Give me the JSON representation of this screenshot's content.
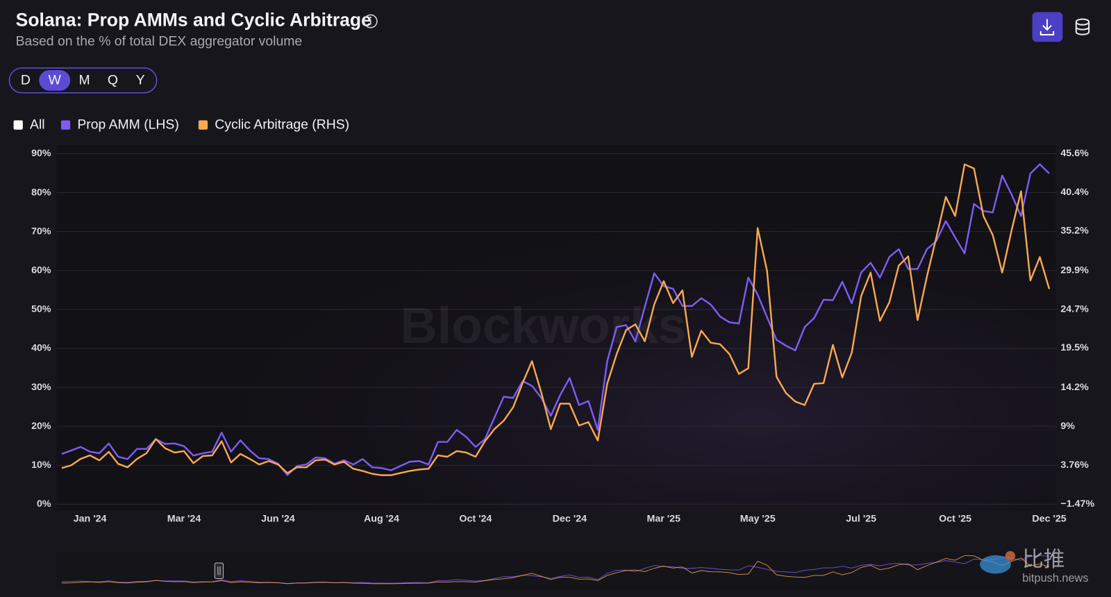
{
  "header": {
    "title": "Solana: Prop AMMs and Cyclic Arbitrage",
    "subtitle": "Based on the % of total DEX aggregator volume"
  },
  "controls": {
    "intervals": [
      "D",
      "W",
      "M",
      "Q",
      "Y"
    ],
    "active": "W"
  },
  "chart_data": {
    "type": "line",
    "legend_toggle": "All",
    "watermark": "Blockworks",
    "categories": [
      null,
      null,
      null,
      "Jan '24",
      null,
      null,
      null,
      null,
      null,
      null,
      null,
      null,
      null,
      "Mar '24",
      null,
      null,
      null,
      null,
      null,
      null,
      null,
      null,
      null,
      "Jun '24",
      null,
      null,
      null,
      null,
      null,
      null,
      null,
      null,
      null,
      null,
      "Aug '24",
      null,
      null,
      null,
      null,
      null,
      null,
      null,
      null,
      null,
      "Oct '24",
      null,
      null,
      null,
      null,
      null,
      null,
      null,
      null,
      null,
      "Dec '24",
      null,
      null,
      null,
      null,
      null,
      null,
      null,
      null,
      null,
      "Mar '25",
      null,
      null,
      null,
      null,
      null,
      null,
      null,
      null,
      null,
      "May '25",
      null,
      null,
      null,
      null,
      null,
      null,
      null,
      null,
      null,
      null,
      "Jul '25",
      null,
      null,
      null,
      null,
      null,
      null,
      null,
      null,
      null,
      "Oct '25",
      null,
      null,
      null,
      null,
      null,
      null,
      null,
      null,
      null,
      "Dec '25"
    ],
    "series": [
      {
        "name": "Prop AMM (LHS)",
        "color": "#7c5cf5",
        "values": [
          12.9,
          13.8,
          14.7,
          13.5,
          13.1,
          15.6,
          12.2,
          11.6,
          14.2,
          14.2,
          16.7,
          15.5,
          15.6,
          14.9,
          12.5,
          13.1,
          13.5,
          18.4,
          13.5,
          16.4,
          13.8,
          11.8,
          11.6,
          10.4,
          7.5,
          9.8,
          10.2,
          12.0,
          11.8,
          10.4,
          11.3,
          10.2,
          11.6,
          9.5,
          9.3,
          8.7,
          9.8,
          10.9,
          11.1,
          10.2,
          16.0,
          16.0,
          19.1,
          17.3,
          14.7,
          16.7,
          22.2,
          27.6,
          27.3,
          31.6,
          30.4,
          27.3,
          22.7,
          28.0,
          32.4,
          25.5,
          26.5,
          19.1,
          36.7,
          45.5,
          46.0,
          41.8,
          50.7,
          59.3,
          56.0,
          55.3,
          50.9,
          50.9,
          52.9,
          51.3,
          48.2,
          46.7,
          46.4,
          58.2,
          53.8,
          48.0,
          42.2,
          40.7,
          39.5,
          45.5,
          47.8,
          52.5,
          52.4,
          57.1,
          51.6,
          59.5,
          62.0,
          58.2,
          63.5,
          65.5,
          60.4,
          60.4,
          65.5,
          67.6,
          72.7,
          68.5,
          64.4,
          77.1,
          75.3,
          74.9,
          84.4,
          79.5,
          74.0,
          84.9,
          87.3,
          84.9
        ]
      },
      {
        "name": "Cyclic Arbitrage (RHS)",
        "color": "#f7a850",
        "axis": "y2",
        "values": [
          3.38,
          3.76,
          4.62,
          5.09,
          4.43,
          5.57,
          3.95,
          3.48,
          4.62,
          5.38,
          7.28,
          6.04,
          5.47,
          5.66,
          4.05,
          5.0,
          5.09,
          6.99,
          4.14,
          5.28,
          4.62,
          3.86,
          4.33,
          3.86,
          2.71,
          3.48,
          3.48,
          4.43,
          4.52,
          3.86,
          4.24,
          3.29,
          3.0,
          2.62,
          2.43,
          2.43,
          2.71,
          3.0,
          3.19,
          3.29,
          5.09,
          4.9,
          5.66,
          5.47,
          4.9,
          6.99,
          8.61,
          9.75,
          11.56,
          14.79,
          17.74,
          13.46,
          8.61,
          12.03,
          12.03,
          9.09,
          9.56,
          7.09,
          14.7,
          18.69,
          21.92,
          22.68,
          20.4,
          25.35,
          28.49,
          25.54,
          27.25,
          18.31,
          21.83,
          20.21,
          20.02,
          18.69,
          16.03,
          16.79,
          35.62,
          29.82,
          15.65,
          13.46,
          12.32,
          11.84,
          14.7,
          14.79,
          19.93,
          15.55,
          18.88,
          26.49,
          29.63,
          23.16,
          25.63,
          30.58,
          31.81,
          23.25,
          29.15,
          34.38,
          39.8,
          37.23,
          44.17,
          43.6,
          37.23,
          34.66,
          29.63,
          35.33,
          40.56,
          28.58,
          31.72,
          27.44
        ]
      }
    ],
    "ylim": [
      0,
      90
    ],
    "yticks": [
      {
        "value": 0,
        "label": "0%"
      },
      {
        "value": 10,
        "label": "10%"
      },
      {
        "value": 20,
        "label": "20%"
      },
      {
        "value": 30,
        "label": "30%"
      },
      {
        "value": 40,
        "label": "40%"
      },
      {
        "value": 50,
        "label": "50%"
      },
      {
        "value": 60,
        "label": "60%"
      },
      {
        "value": 70,
        "label": "70%"
      },
      {
        "value": 80,
        "label": "80%"
      },
      {
        "value": 90,
        "label": "90%"
      }
    ],
    "y2lim": [
      -1.47,
      45.6
    ],
    "y2ticks": [
      {
        "value": -1.47,
        "label": "−1.47%"
      },
      {
        "value": 3.76,
        "label": "3.76%"
      },
      {
        "value": 9,
        "label": "9%"
      },
      {
        "value": 14.2,
        "label": "14.2%"
      },
      {
        "value": 19.5,
        "label": "19.5%"
      },
      {
        "value": 24.7,
        "label": "24.7%"
      },
      {
        "value": 29.9,
        "label": "29.9%"
      },
      {
        "value": 35.2,
        "label": "35.2%"
      },
      {
        "value": 40.4,
        "label": "40.4%"
      },
      {
        "value": 45.6,
        "label": "45.6%"
      }
    ],
    "grid": true
  },
  "overlay": {
    "brand": "比推",
    "site": "bitpush.news"
  }
}
